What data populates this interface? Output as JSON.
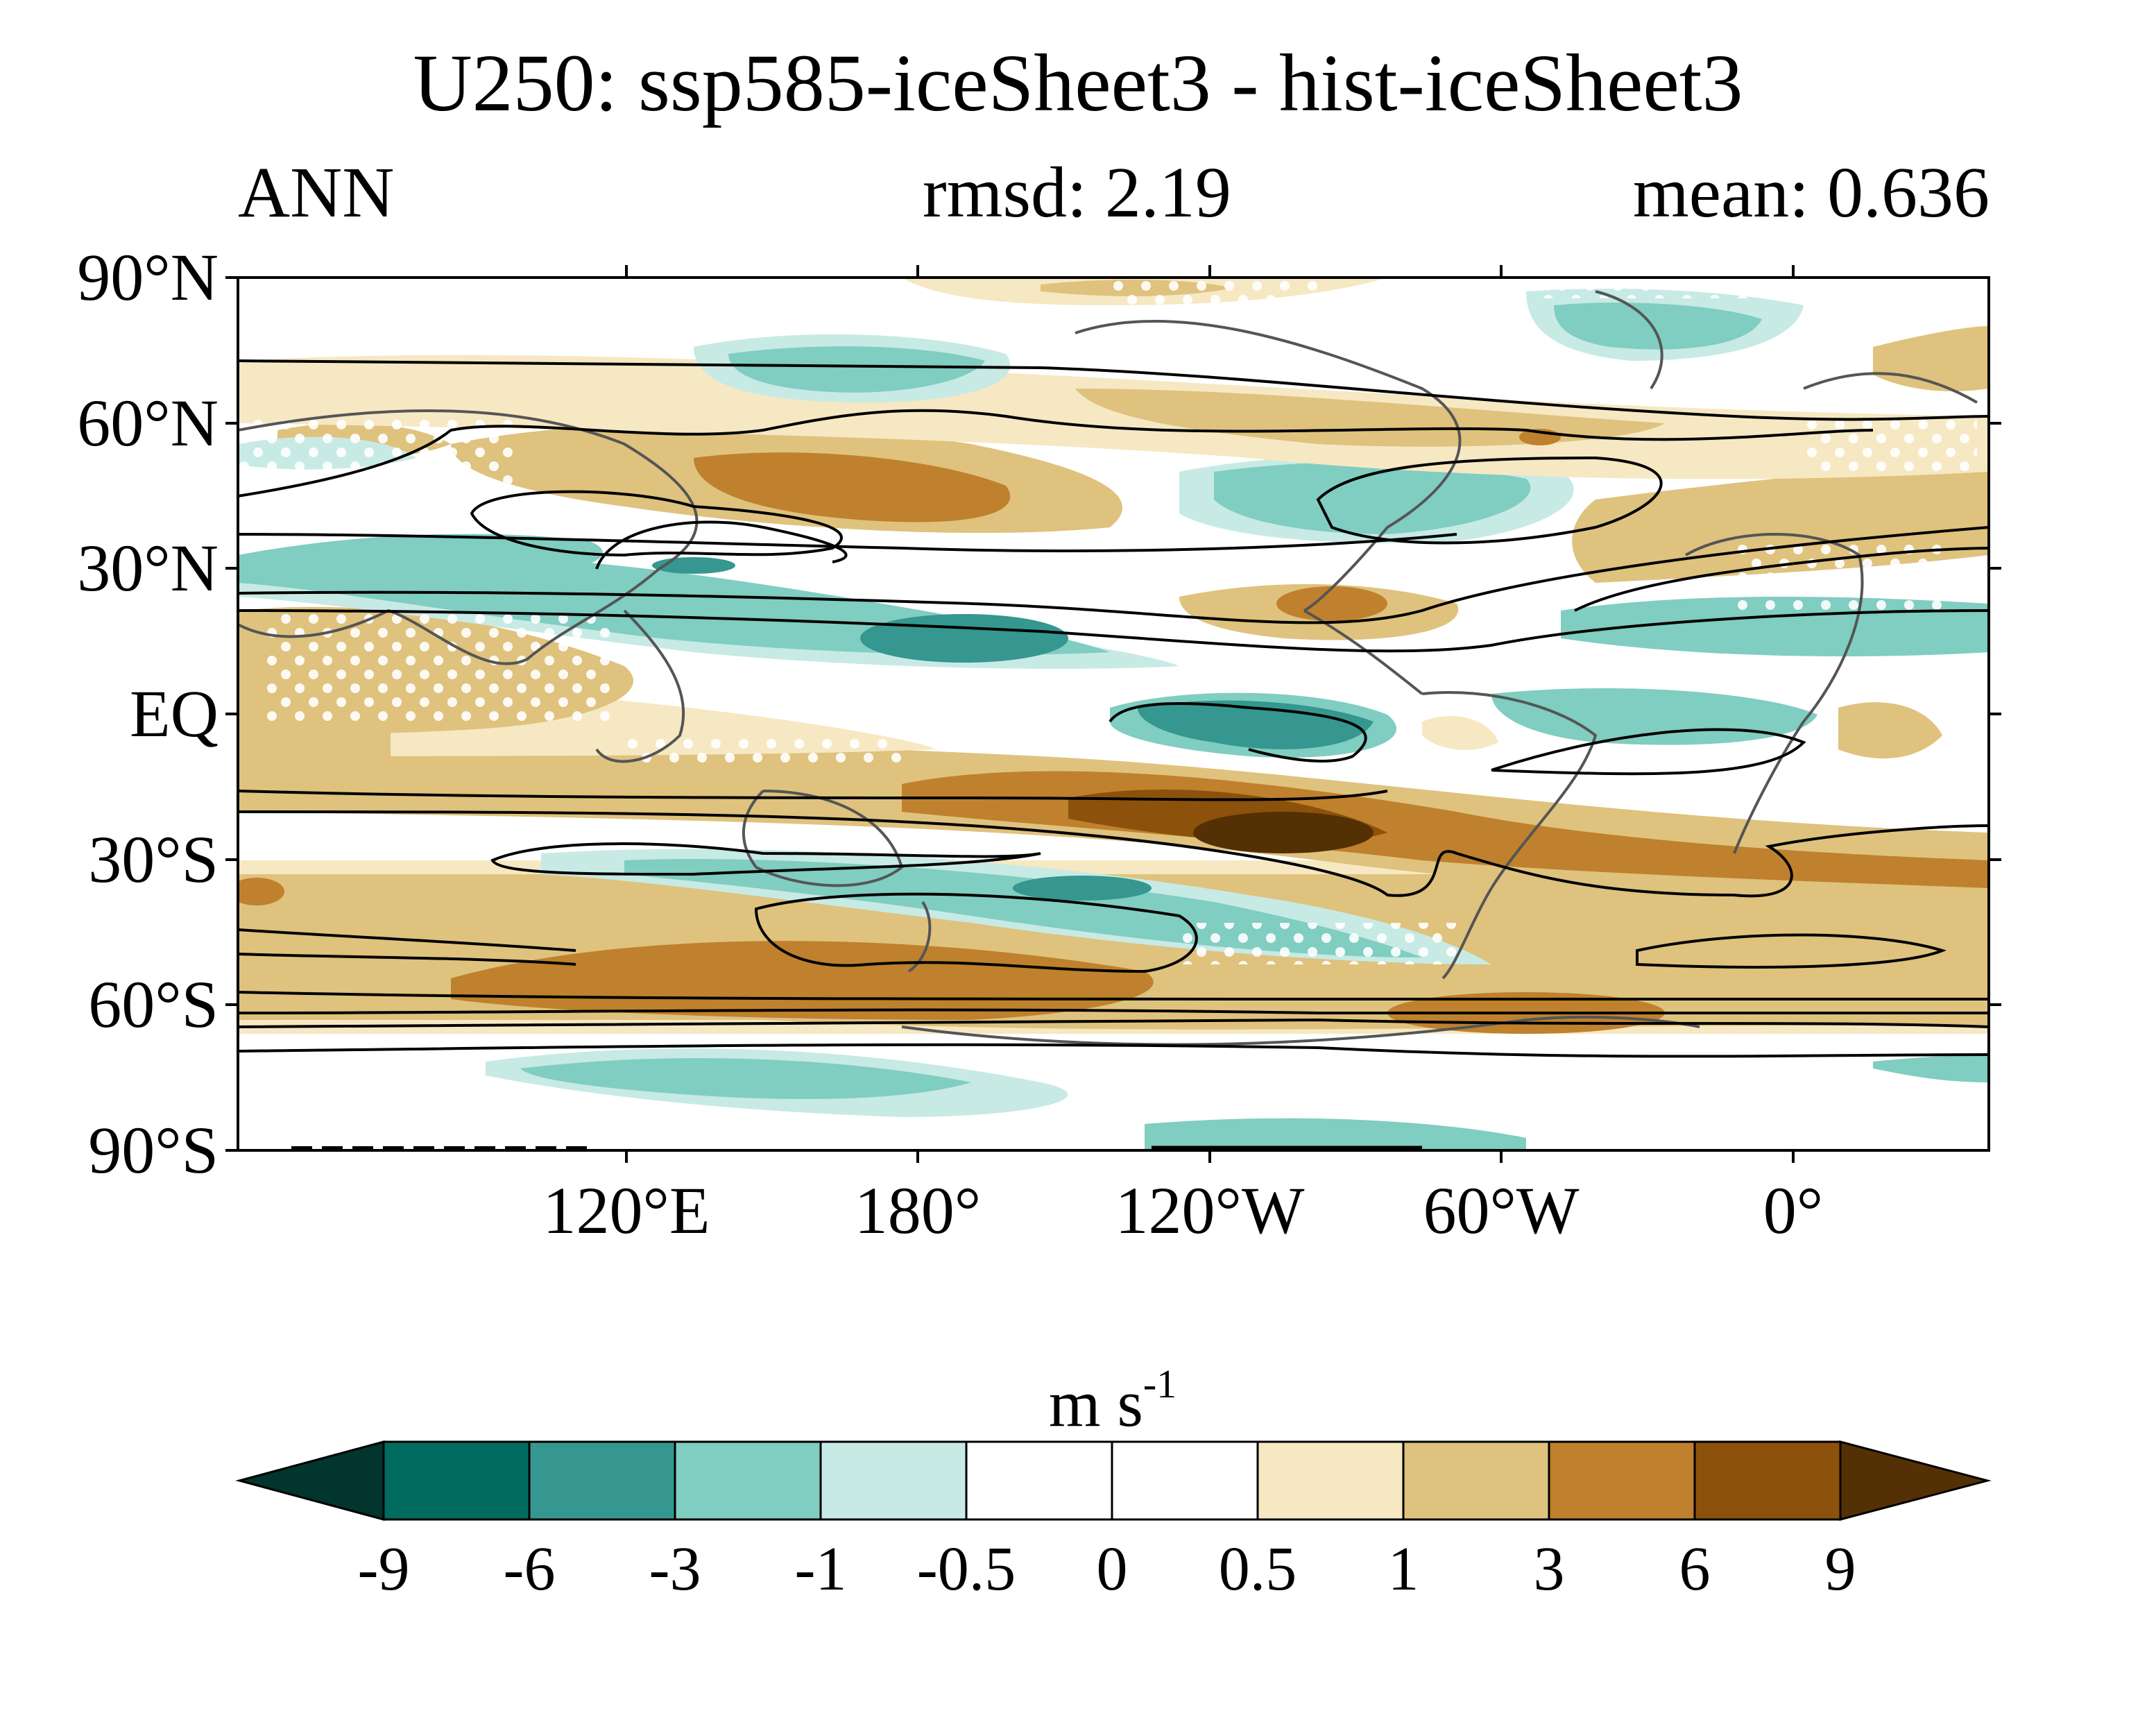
{
  "header": {
    "title": "U250: ssp585-iceSheet3 - hist-iceSheet3",
    "season": "ANN",
    "rmsd": "rmsd: 2.19",
    "mean": "mean: 0.636"
  },
  "map": {
    "lat_labels": [
      "90°N",
      "60°N",
      "30°N",
      "EQ",
      "30°S",
      "60°S",
      "90°S"
    ],
    "lon_labels": [
      "120°E",
      "180°",
      "120°W",
      "60°W",
      "0°"
    ],
    "projection": "cylindrical equidistant, centered 150°W",
    "features": [
      "coastlines",
      "stippling for significance",
      "climatology contours"
    ]
  },
  "colorbar": {
    "units_base": "m s",
    "units_exp": "-1",
    "tick_labels": [
      "-9",
      "-6",
      "-3",
      "-1",
      "-0.5",
      "0",
      "0.5",
      "1",
      "3",
      "6",
      "9"
    ],
    "colors": [
      "#01352e",
      "#016b60",
      "#35978f",
      "#80cdc1",
      "#c7eae5",
      "#ffffff",
      "#ffffff",
      "#f6e8c3",
      "#dfc27d",
      "#bf812d",
      "#8c510a",
      "#543005"
    ]
  }
}
